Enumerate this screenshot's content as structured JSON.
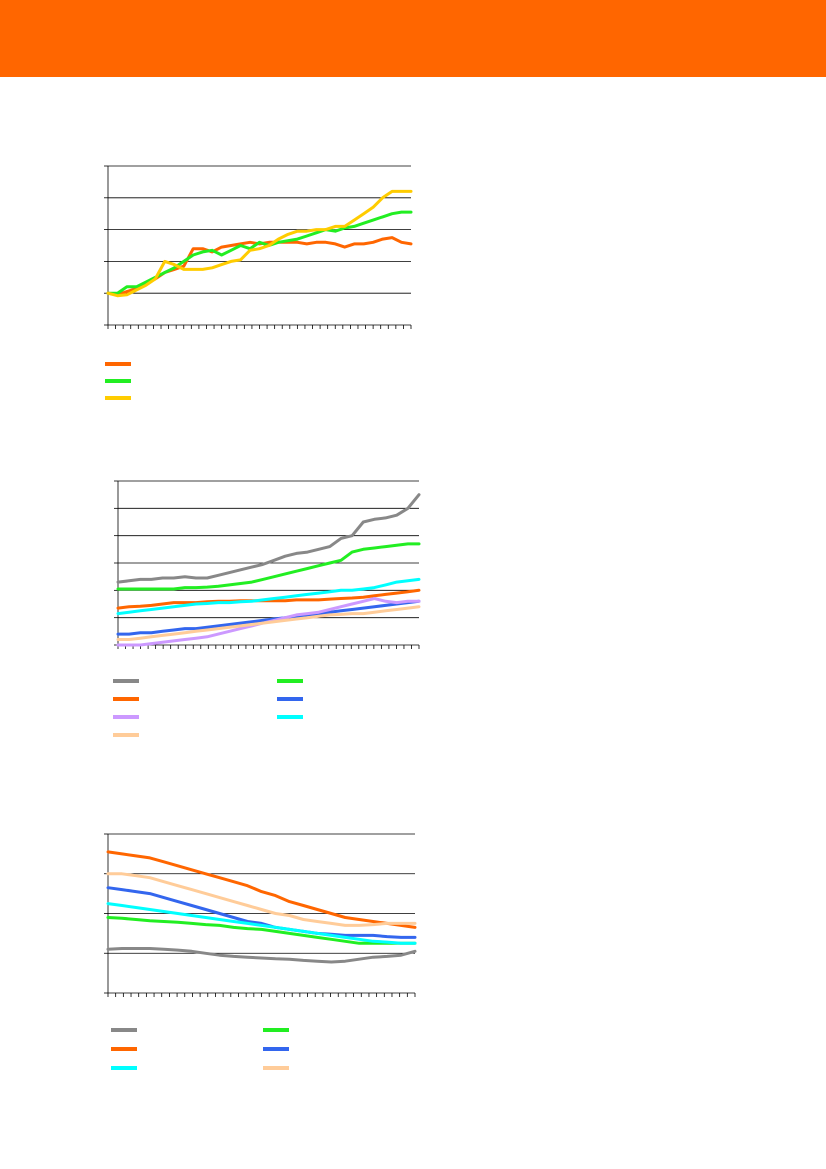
{
  "header": {
    "color": "#ff6600"
  },
  "chart_data": [
    {
      "type": "line",
      "ylim": [
        0,
        5
      ],
      "grid": true,
      "n_points": 40,
      "legend_position": "bottom-left",
      "series": [
        {
          "color": "#ff6600",
          "values": [
            1.0,
            0.95,
            1.05,
            1.15,
            1.3,
            1.45,
            1.65,
            1.75,
            1.85,
            2.4,
            2.4,
            2.3,
            2.45,
            2.5,
            2.55,
            2.6,
            2.55,
            2.6,
            2.6,
            2.6,
            2.6,
            2.55,
            2.6,
            2.6,
            2.55,
            2.45,
            2.55,
            2.55,
            2.6,
            2.7,
            2.75,
            2.6,
            2.55
          ]
        },
        {
          "color": "#22ee22",
          "values": [
            1.0,
            1.0,
            1.2,
            1.2,
            1.35,
            1.5,
            1.65,
            1.8,
            2.0,
            2.2,
            2.3,
            2.35,
            2.2,
            2.35,
            2.5,
            2.4,
            2.6,
            2.5,
            2.6,
            2.65,
            2.7,
            2.8,
            2.9,
            3.0,
            2.95,
            3.05,
            3.1,
            3.2,
            3.3,
            3.4,
            3.5,
            3.55,
            3.55
          ]
        },
        {
          "color": "#ffcc00",
          "values": [
            1.0,
            0.92,
            0.95,
            1.1,
            1.25,
            1.45,
            2.0,
            1.9,
            1.75,
            1.75,
            1.75,
            1.8,
            1.9,
            2.0,
            2.05,
            2.35,
            2.4,
            2.5,
            2.7,
            2.85,
            2.95,
            2.95,
            3.0,
            3.0,
            3.1,
            3.1,
            3.3,
            3.5,
            3.7,
            4.0,
            4.2,
            4.2,
            4.2
          ]
        }
      ]
    },
    {
      "type": "line",
      "ylim": [
        0,
        6
      ],
      "grid": true,
      "n_points": 40,
      "legend_position": "bottom",
      "series": [
        {
          "color": "#888888",
          "values": [
            2.3,
            2.35,
            2.4,
            2.4,
            2.45,
            2.45,
            2.5,
            2.45,
            2.45,
            2.55,
            2.65,
            2.75,
            2.85,
            2.95,
            3.1,
            3.25,
            3.35,
            3.4,
            3.5,
            3.6,
            3.9,
            4.0,
            4.5,
            4.6,
            4.65,
            4.75,
            5.0,
            5.5
          ]
        },
        {
          "color": "#22ee22",
          "values": [
            2.05,
            2.05,
            2.05,
            2.05,
            2.05,
            2.05,
            2.1,
            2.1,
            2.12,
            2.15,
            2.2,
            2.25,
            2.3,
            2.4,
            2.5,
            2.6,
            2.7,
            2.8,
            2.9,
            3.0,
            3.1,
            3.4,
            3.5,
            3.55,
            3.6,
            3.65,
            3.7,
            3.7
          ]
        },
        {
          "color": "#ff6600",
          "values": [
            1.35,
            1.4,
            1.42,
            1.45,
            1.5,
            1.55,
            1.55,
            1.55,
            1.58,
            1.6,
            1.6,
            1.62,
            1.62,
            1.62,
            1.62,
            1.62,
            1.65,
            1.65,
            1.65,
            1.68,
            1.7,
            1.72,
            1.75,
            1.8,
            1.85,
            1.9,
            1.95,
            2.0
          ]
        },
        {
          "color": "#3366ee",
          "values": [
            0.4,
            0.4,
            0.45,
            0.45,
            0.5,
            0.55,
            0.6,
            0.6,
            0.65,
            0.7,
            0.75,
            0.8,
            0.85,
            0.9,
            0.95,
            1.0,
            1.05,
            1.1,
            1.15,
            1.2,
            1.25,
            1.3,
            1.35,
            1.4,
            1.45,
            1.5,
            1.55,
            1.6
          ]
        },
        {
          "color": "#cc99ff",
          "values": [
            0.0,
            0.0,
            0.0,
            0.05,
            0.1,
            0.15,
            0.2,
            0.25,
            0.3,
            0.4,
            0.5,
            0.6,
            0.7,
            0.8,
            0.9,
            1.0,
            1.1,
            1.15,
            1.2,
            1.3,
            1.4,
            1.5,
            1.6,
            1.7,
            1.6,
            1.55,
            1.6,
            1.6
          ]
        },
        {
          "color": "#00ffff",
          "values": [
            1.15,
            1.2,
            1.25,
            1.3,
            1.35,
            1.4,
            1.45,
            1.5,
            1.52,
            1.55,
            1.55,
            1.58,
            1.6,
            1.65,
            1.7,
            1.75,
            1.8,
            1.85,
            1.9,
            1.95,
            2.0,
            2.0,
            2.05,
            2.1,
            2.2,
            2.3,
            2.35,
            2.4
          ]
        },
        {
          "color": "#ffcc99",
          "values": [
            0.2,
            0.2,
            0.25,
            0.3,
            0.35,
            0.4,
            0.45,
            0.5,
            0.55,
            0.6,
            0.65,
            0.7,
            0.75,
            0.8,
            0.85,
            0.9,
            0.95,
            1.0,
            1.05,
            1.1,
            1.12,
            1.15,
            1.15,
            1.2,
            1.25,
            1.3,
            1.35,
            1.4
          ]
        }
      ]
    },
    {
      "type": "line",
      "ylim": [
        0,
        4
      ],
      "grid": true,
      "n_points": 40,
      "legend_position": "bottom",
      "series": [
        {
          "color": "#888888",
          "values": [
            1.1,
            1.12,
            1.12,
            1.12,
            1.1,
            1.08,
            1.05,
            1.0,
            0.95,
            0.92,
            0.9,
            0.88,
            0.86,
            0.85,
            0.82,
            0.8,
            0.78,
            0.8,
            0.85,
            0.9,
            0.92,
            0.95,
            1.05
          ]
        },
        {
          "color": "#22ee22",
          "values": [
            1.9,
            1.88,
            1.85,
            1.82,
            1.8,
            1.78,
            1.75,
            1.72,
            1.7,
            1.65,
            1.62,
            1.6,
            1.55,
            1.5,
            1.45,
            1.4,
            1.35,
            1.3,
            1.25,
            1.25,
            1.25,
            1.25,
            1.25
          ]
        },
        {
          "color": "#ff6600",
          "values": [
            3.55,
            3.5,
            3.45,
            3.4,
            3.3,
            3.2,
            3.1,
            3.0,
            2.9,
            2.8,
            2.7,
            2.55,
            2.45,
            2.3,
            2.2,
            2.1,
            2.0,
            1.9,
            1.85,
            1.8,
            1.75,
            1.7,
            1.65
          ]
        },
        {
          "color": "#3366ee",
          "values": [
            2.65,
            2.6,
            2.55,
            2.5,
            2.4,
            2.3,
            2.2,
            2.1,
            2.0,
            1.9,
            1.8,
            1.75,
            1.65,
            1.6,
            1.55,
            1.5,
            1.48,
            1.45,
            1.45,
            1.45,
            1.42,
            1.4,
            1.4
          ]
        },
        {
          "color": "#00ffff",
          "values": [
            2.25,
            2.2,
            2.15,
            2.1,
            2.05,
            2.0,
            1.95,
            1.9,
            1.85,
            1.8,
            1.75,
            1.7,
            1.65,
            1.6,
            1.55,
            1.5,
            1.45,
            1.4,
            1.35,
            1.3,
            1.28,
            1.25,
            1.25
          ]
        },
        {
          "color": "#ffcc99",
          "values": [
            3.0,
            3.0,
            2.95,
            2.9,
            2.8,
            2.7,
            2.6,
            2.5,
            2.4,
            2.3,
            2.2,
            2.1,
            2.0,
            1.95,
            1.85,
            1.8,
            1.75,
            1.7,
            1.7,
            1.72,
            1.75,
            1.75,
            1.75
          ]
        }
      ]
    }
  ]
}
